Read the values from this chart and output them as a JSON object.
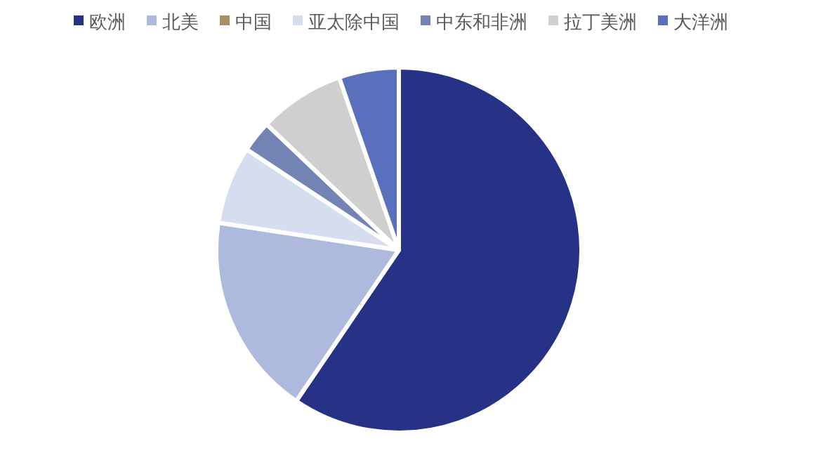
{
  "chart_data": {
    "type": "pie",
    "categories": [
      "欧洲",
      "北美",
      "中国",
      "亚太除中国",
      "中东和非洲",
      "拉丁美洲",
      "大洋洲"
    ],
    "values": [
      59.5,
      17.9,
      0,
      6.9,
      2.8,
      7.6,
      5.3
    ],
    "colors": [
      "#253285",
      "#aeb9de",
      "#a89066",
      "#d6ddef",
      "#7383b3",
      "#cfcfcf",
      "#5a70bd"
    ],
    "legend": "top"
  }
}
